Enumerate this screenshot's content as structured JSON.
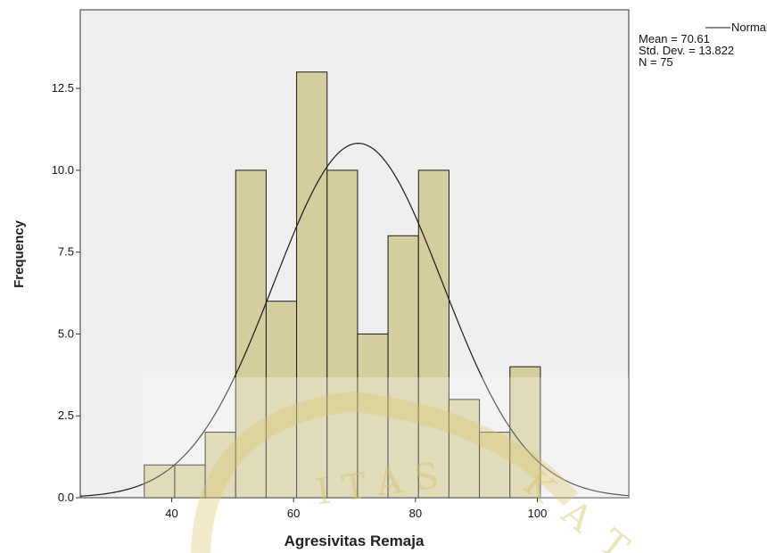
{
  "chart_data": {
    "type": "bar",
    "histogram": true,
    "bins": [
      {
        "x0": 35.5,
        "x1": 40.5,
        "count": 1
      },
      {
        "x0": 40.5,
        "x1": 45.5,
        "count": 1
      },
      {
        "x0": 45.5,
        "x1": 50.5,
        "count": 2
      },
      {
        "x0": 50.5,
        "x1": 55.5,
        "count": 10
      },
      {
        "x0": 55.5,
        "x1": 60.5,
        "count": 6
      },
      {
        "x0": 60.5,
        "x1": 65.5,
        "count": 13
      },
      {
        "x0": 65.5,
        "x1": 70.5,
        "count": 10
      },
      {
        "x0": 70.5,
        "x1": 75.5,
        "count": 5
      },
      {
        "x0": 75.5,
        "x1": 80.5,
        "count": 8
      },
      {
        "x0": 80.5,
        "x1": 85.5,
        "count": 10
      },
      {
        "x0": 85.5,
        "x1": 90.5,
        "count": 3
      },
      {
        "x0": 90.5,
        "x1": 95.5,
        "count": 2
      },
      {
        "x0": 95.5,
        "x1": 100.5,
        "count": 4
      }
    ],
    "normal_curve": {
      "mean": 70.61,
      "sd": 13.822,
      "n": 75,
      "bin_width": 5
    },
    "xlabel": "Agresivitas Remaja",
    "ylabel": "Frequency",
    "xlim": [
      25,
      115
    ],
    "ylim": [
      0,
      14.9
    ],
    "x_ticks": [
      "40",
      "60",
      "80",
      "100"
    ],
    "y_ticks": [
      "0.0",
      "2.5",
      "5.0",
      "7.5",
      "10.0",
      "12.5"
    ],
    "legend": {
      "curve_label": "Normal",
      "stats": [
        "Mean = 70.61",
        "Std. Dev. = 13.822",
        "N = 75"
      ],
      "position": "top-right"
    },
    "grid": false,
    "colors": {
      "bar_fill": "#d4cd9e",
      "bar_stroke": "#1a1a1a",
      "plot_bg": "#efefef",
      "curve": "#1a1a1a"
    }
  },
  "watermark": {
    "text": "ITAS",
    "secondary": "K A T"
  }
}
